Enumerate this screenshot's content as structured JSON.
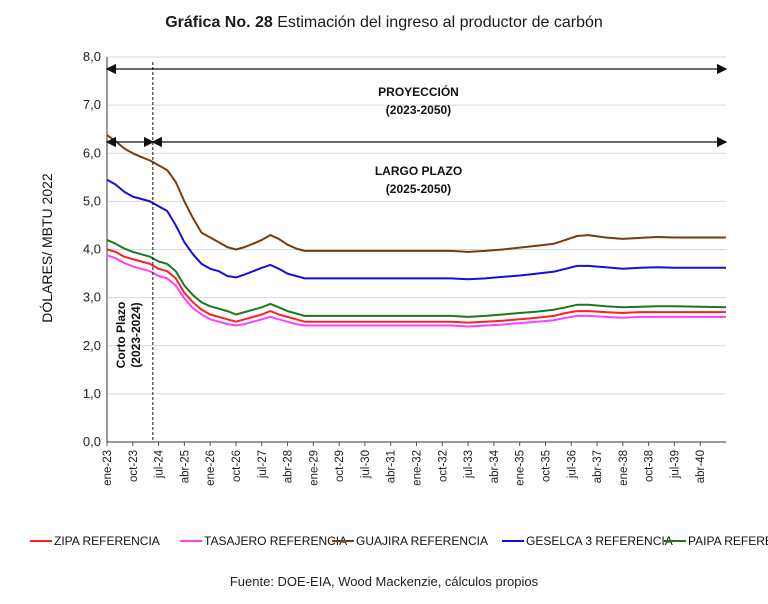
{
  "title_bold": "Gráfica No. 28",
  "title_rest": " Estimación del ingreso al productor de carbón",
  "source": "Fuente: DOE-EIA, Wood Mackenzie, cálculos propios",
  "chart_data": {
    "type": "line",
    "title": "Gráfica No. 28 Estimación del ingreso al productor de carbón",
    "ylabel": "DÓLARES/ MBTU 2022",
    "ylim": [
      0,
      8
    ],
    "yticks": [
      "0,0",
      "1,0",
      "2,0",
      "3,0",
      "4,0",
      "5,0",
      "6,0",
      "7,0",
      "8,0"
    ],
    "xlim": [
      0,
      216
    ],
    "xticks": [
      {
        "label": "ene-23",
        "x": 0
      },
      {
        "label": "oct-23",
        "x": 9
      },
      {
        "label": "jul-24",
        "x": 18
      },
      {
        "label": "abr-25",
        "x": 27
      },
      {
        "label": "ene-26",
        "x": 36
      },
      {
        "label": "oct-26",
        "x": 45
      },
      {
        "label": "jul-27",
        "x": 54
      },
      {
        "label": "abr-28",
        "x": 63
      },
      {
        "label": "ene-29",
        "x": 72
      },
      {
        "label": "oct-29",
        "x": 81
      },
      {
        "label": "jul-30",
        "x": 90
      },
      {
        "label": "abr-31",
        "x": 99
      },
      {
        "label": "ene-32",
        "x": 108
      },
      {
        "label": "oct-32",
        "x": 117
      },
      {
        "label": "jul-33",
        "x": 126
      },
      {
        "label": "abr-34",
        "x": 135
      },
      {
        "label": "ene-35",
        "x": 144
      },
      {
        "label": "oct-35",
        "x": 153
      },
      {
        "label": "jul-36",
        "x": 162
      },
      {
        "label": "abr-37",
        "x": 171
      },
      {
        "label": "ene-38",
        "x": 180
      },
      {
        "label": "oct-38",
        "x": 189
      },
      {
        "label": "jul-39",
        "x": 198
      },
      {
        "label": "abr-40",
        "x": 207
      }
    ],
    "annotations": {
      "proyeccion_label": "PROYECCIÓN",
      "proyeccion_range": "(2023-2050)",
      "largo_label": "LARGO PLAZO",
      "largo_range": "(2025-2050)",
      "corto_label": "Corto Plazo",
      "corto_range": "(2023-2024)"
    },
    "series": [
      {
        "name": "ZIPA REFERENCIA",
        "color": "#ff2020",
        "points": [
          [
            0,
            4.0
          ],
          [
            3,
            3.95
          ],
          [
            6,
            3.85
          ],
          [
            9,
            3.8
          ],
          [
            12,
            3.75
          ],
          [
            15,
            3.7
          ],
          [
            18,
            3.6
          ],
          [
            21,
            3.55
          ],
          [
            24,
            3.4
          ],
          [
            27,
            3.1
          ],
          [
            30,
            2.9
          ],
          [
            33,
            2.75
          ],
          [
            36,
            2.65
          ],
          [
            39,
            2.6
          ],
          [
            42,
            2.55
          ],
          [
            45,
            2.5
          ],
          [
            48,
            2.55
          ],
          [
            51,
            2.6
          ],
          [
            54,
            2.65
          ],
          [
            57,
            2.72
          ],
          [
            60,
            2.65
          ],
          [
            63,
            2.6
          ],
          [
            66,
            2.55
          ],
          [
            69,
            2.5
          ],
          [
            75,
            2.5
          ],
          [
            90,
            2.5
          ],
          [
            105,
            2.5
          ],
          [
            120,
            2.5
          ],
          [
            126,
            2.48
          ],
          [
            132,
            2.5
          ],
          [
            138,
            2.52
          ],
          [
            144,
            2.55
          ],
          [
            150,
            2.58
          ],
          [
            156,
            2.62
          ],
          [
            160,
            2.68
          ],
          [
            164,
            2.72
          ],
          [
            168,
            2.72
          ],
          [
            174,
            2.7
          ],
          [
            180,
            2.68
          ],
          [
            186,
            2.7
          ],
          [
            192,
            2.7
          ],
          [
            198,
            2.7
          ],
          [
            216,
            2.7
          ]
        ]
      },
      {
        "name": "TASAJERO REFERENCIA",
        "color": "#ff40ff",
        "points": [
          [
            0,
            3.88
          ],
          [
            3,
            3.82
          ],
          [
            6,
            3.72
          ],
          [
            9,
            3.65
          ],
          [
            12,
            3.6
          ],
          [
            15,
            3.55
          ],
          [
            18,
            3.45
          ],
          [
            21,
            3.4
          ],
          [
            24,
            3.25
          ],
          [
            27,
            2.98
          ],
          [
            30,
            2.78
          ],
          [
            33,
            2.65
          ],
          [
            36,
            2.55
          ],
          [
            39,
            2.5
          ],
          [
            42,
            2.45
          ],
          [
            45,
            2.42
          ],
          [
            48,
            2.45
          ],
          [
            51,
            2.5
          ],
          [
            54,
            2.55
          ],
          [
            57,
            2.6
          ],
          [
            60,
            2.55
          ],
          [
            63,
            2.5
          ],
          [
            66,
            2.45
          ],
          [
            69,
            2.42
          ],
          [
            75,
            2.42
          ],
          [
            90,
            2.42
          ],
          [
            105,
            2.42
          ],
          [
            120,
            2.42
          ],
          [
            126,
            2.4
          ],
          [
            132,
            2.42
          ],
          [
            138,
            2.44
          ],
          [
            144,
            2.47
          ],
          [
            150,
            2.5
          ],
          [
            156,
            2.53
          ],
          [
            160,
            2.58
          ],
          [
            164,
            2.62
          ],
          [
            168,
            2.62
          ],
          [
            174,
            2.6
          ],
          [
            180,
            2.58
          ],
          [
            186,
            2.6
          ],
          [
            192,
            2.6
          ],
          [
            198,
            2.6
          ],
          [
            216,
            2.6
          ]
        ]
      },
      {
        "name": "GUAJIRA REFERENCIA",
        "color": "#7a3b10",
        "points": [
          [
            0,
            6.38
          ],
          [
            3,
            6.25
          ],
          [
            6,
            6.1
          ],
          [
            9,
            6.0
          ],
          [
            12,
            5.92
          ],
          [
            15,
            5.85
          ],
          [
            18,
            5.75
          ],
          [
            21,
            5.65
          ],
          [
            24,
            5.4
          ],
          [
            27,
            5.0
          ],
          [
            30,
            4.65
          ],
          [
            33,
            4.35
          ],
          [
            36,
            4.25
          ],
          [
            39,
            4.15
          ],
          [
            42,
            4.05
          ],
          [
            45,
            4.0
          ],
          [
            48,
            4.05
          ],
          [
            51,
            4.12
          ],
          [
            54,
            4.2
          ],
          [
            57,
            4.3
          ],
          [
            60,
            4.22
          ],
          [
            63,
            4.1
          ],
          [
            66,
            4.02
          ],
          [
            69,
            3.97
          ],
          [
            75,
            3.97
          ],
          [
            90,
            3.97
          ],
          [
            105,
            3.97
          ],
          [
            120,
            3.97
          ],
          [
            126,
            3.95
          ],
          [
            132,
            3.97
          ],
          [
            138,
            4.0
          ],
          [
            144,
            4.04
          ],
          [
            150,
            4.08
          ],
          [
            156,
            4.12
          ],
          [
            160,
            4.2
          ],
          [
            164,
            4.28
          ],
          [
            168,
            4.3
          ],
          [
            174,
            4.25
          ],
          [
            180,
            4.22
          ],
          [
            186,
            4.24
          ],
          [
            192,
            4.26
          ],
          [
            198,
            4.25
          ],
          [
            216,
            4.25
          ]
        ]
      },
      {
        "name": "GESELCA 3 REFERENCIA",
        "color": "#1010e0",
        "points": [
          [
            0,
            5.45
          ],
          [
            3,
            5.35
          ],
          [
            6,
            5.2
          ],
          [
            9,
            5.1
          ],
          [
            12,
            5.05
          ],
          [
            15,
            5.0
          ],
          [
            18,
            4.9
          ],
          [
            21,
            4.8
          ],
          [
            24,
            4.5
          ],
          [
            27,
            4.15
          ],
          [
            30,
            3.9
          ],
          [
            33,
            3.7
          ],
          [
            36,
            3.6
          ],
          [
            39,
            3.55
          ],
          [
            42,
            3.45
          ],
          [
            45,
            3.42
          ],
          [
            48,
            3.48
          ],
          [
            51,
            3.55
          ],
          [
            54,
            3.62
          ],
          [
            57,
            3.68
          ],
          [
            60,
            3.6
          ],
          [
            63,
            3.5
          ],
          [
            66,
            3.45
          ],
          [
            69,
            3.4
          ],
          [
            75,
            3.4
          ],
          [
            90,
            3.4
          ],
          [
            105,
            3.4
          ],
          [
            120,
            3.4
          ],
          [
            126,
            3.38
          ],
          [
            132,
            3.4
          ],
          [
            138,
            3.43
          ],
          [
            144,
            3.46
          ],
          [
            150,
            3.5
          ],
          [
            156,
            3.54
          ],
          [
            160,
            3.6
          ],
          [
            164,
            3.66
          ],
          [
            168,
            3.66
          ],
          [
            174,
            3.63
          ],
          [
            180,
            3.6
          ],
          [
            186,
            3.62
          ],
          [
            192,
            3.63
          ],
          [
            198,
            3.62
          ],
          [
            216,
            3.62
          ]
        ]
      },
      {
        "name": "PAIPA REFERENCIA",
        "color": "#1a7a1a",
        "points": [
          [
            0,
            4.2
          ],
          [
            3,
            4.12
          ],
          [
            6,
            4.02
          ],
          [
            9,
            3.95
          ],
          [
            12,
            3.9
          ],
          [
            15,
            3.85
          ],
          [
            18,
            3.75
          ],
          [
            21,
            3.7
          ],
          [
            24,
            3.55
          ],
          [
            27,
            3.25
          ],
          [
            30,
            3.05
          ],
          [
            33,
            2.9
          ],
          [
            36,
            2.82
          ],
          [
            39,
            2.77
          ],
          [
            42,
            2.72
          ],
          [
            45,
            2.65
          ],
          [
            48,
            2.7
          ],
          [
            51,
            2.75
          ],
          [
            54,
            2.8
          ],
          [
            57,
            2.87
          ],
          [
            60,
            2.8
          ],
          [
            63,
            2.72
          ],
          [
            66,
            2.67
          ],
          [
            69,
            2.62
          ],
          [
            75,
            2.62
          ],
          [
            90,
            2.62
          ],
          [
            105,
            2.62
          ],
          [
            120,
            2.62
          ],
          [
            126,
            2.6
          ],
          [
            132,
            2.62
          ],
          [
            138,
            2.65
          ],
          [
            144,
            2.68
          ],
          [
            150,
            2.71
          ],
          [
            156,
            2.75
          ],
          [
            160,
            2.8
          ],
          [
            164,
            2.85
          ],
          [
            168,
            2.85
          ],
          [
            174,
            2.82
          ],
          [
            180,
            2.8
          ],
          [
            186,
            2.81
          ],
          [
            192,
            2.82
          ],
          [
            198,
            2.82
          ],
          [
            216,
            2.8
          ]
        ]
      }
    ]
  }
}
